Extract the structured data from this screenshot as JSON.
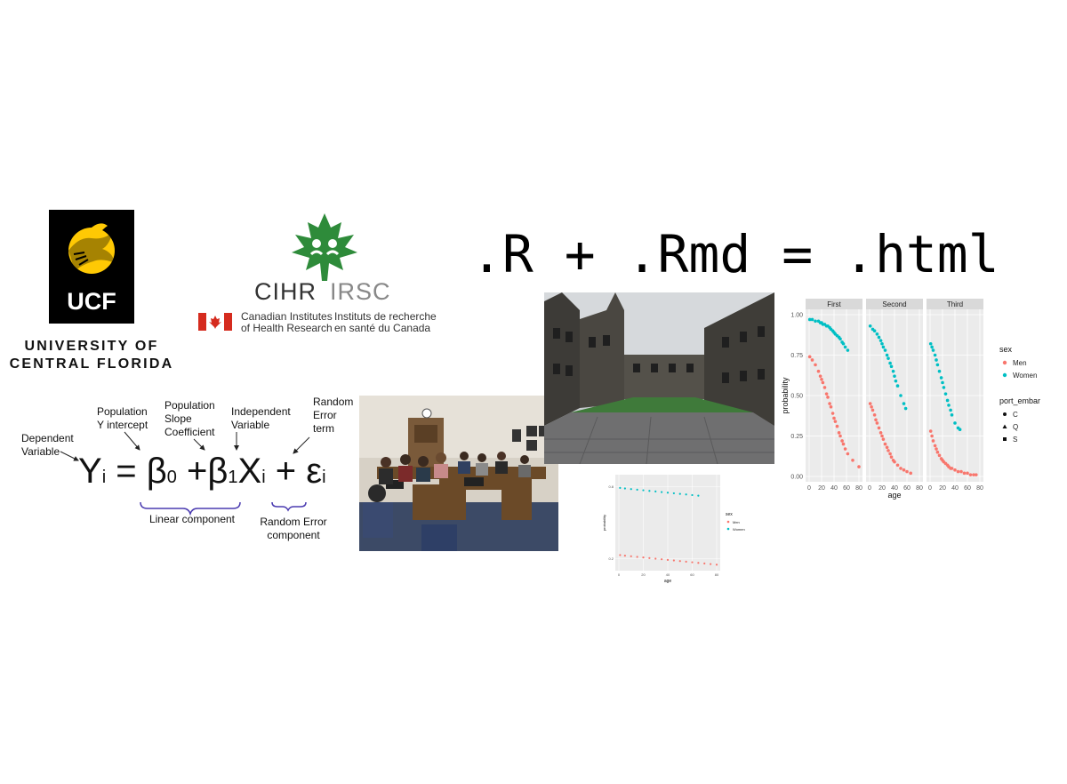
{
  "ucf": {
    "mark": "UCF",
    "line1": "UNIVERSITY OF",
    "line2": "CENTRAL FLORIDA"
  },
  "cihr": {
    "abbrev_en": "CIHR",
    "abbrev_fr": "IRSC",
    "name_en_1": "Canadian Institutes",
    "name_en_2": "of Health Research",
    "name_fr_1": "Instituts de recherche",
    "name_fr_2": "en santé du Canada"
  },
  "title": ".R + .Rmd = .html",
  "equation": {
    "labels": {
      "dependent": [
        "Dependent",
        "Variable"
      ],
      "intercept": [
        "Population",
        "Y  intercept"
      ],
      "slope": [
        "Population",
        "Slope",
        "Coefficient"
      ],
      "independent": [
        "Independent",
        "Variable"
      ],
      "error": [
        "Random",
        "Error",
        "term"
      ]
    },
    "Y": "Y",
    "i": "i",
    "beta": "β",
    "zero": "0",
    "one": "1",
    "X": "X",
    "eps": "ε",
    "equals": "=",
    "plus": "+",
    "linear_component": "Linear component",
    "random_error_component": [
      "Random Error",
      "component"
    ]
  },
  "colors": {
    "men": "#F8766D",
    "women": "#00BFC4",
    "panel": "#EBEBEB",
    "strip": "#D9D9D9",
    "ucf_gold": "#FFC904",
    "cihr_green": "#2e8b3a",
    "flag_red": "#d52b1e"
  },
  "chart_data": [
    {
      "type": "scatter",
      "facets": [
        "First",
        "Second",
        "Third"
      ],
      "xlabel": "age",
      "ylabel": "probability",
      "xticks": [
        0,
        20,
        40,
        60,
        80
      ],
      "yticks": [
        "0.00",
        "0.25",
        "0.50",
        "0.75",
        "1.00"
      ],
      "xlim": [
        0,
        80
      ],
      "ylim": [
        0,
        1
      ],
      "legend_sex_title": "sex",
      "legend_sex": [
        "Men",
        "Women"
      ],
      "legend_port_title": "port_embarked",
      "legend_port": [
        "C",
        "Q",
        "S"
      ],
      "legend_placement": "right",
      "series": [
        {
          "facet": "First",
          "name": "Women",
          "points": [
            [
              1,
              0.97
            ],
            [
              5,
              0.97
            ],
            [
              10,
              0.96
            ],
            [
              15,
              0.96
            ],
            [
              18,
              0.95
            ],
            [
              20,
              0.95
            ],
            [
              22,
              0.94
            ],
            [
              25,
              0.94
            ],
            [
              28,
              0.93
            ],
            [
              30,
              0.93
            ],
            [
              33,
              0.92
            ],
            [
              35,
              0.91
            ],
            [
              38,
              0.9
            ],
            [
              40,
              0.89
            ],
            [
              42,
              0.88
            ],
            [
              45,
              0.87
            ],
            [
              48,
              0.86
            ],
            [
              50,
              0.85
            ],
            [
              53,
              0.83
            ],
            [
              55,
              0.82
            ],
            [
              58,
              0.8
            ],
            [
              62,
              0.78
            ]
          ]
        },
        {
          "facet": "First",
          "name": "Men",
          "points": [
            [
              1,
              0.74
            ],
            [
              5,
              0.72
            ],
            [
              10,
              0.69
            ],
            [
              15,
              0.65
            ],
            [
              18,
              0.62
            ],
            [
              20,
              0.6
            ],
            [
              22,
              0.58
            ],
            [
              25,
              0.55
            ],
            [
              28,
              0.51
            ],
            [
              30,
              0.49
            ],
            [
              33,
              0.45
            ],
            [
              35,
              0.43
            ],
            [
              38,
              0.39
            ],
            [
              40,
              0.36
            ],
            [
              42,
              0.34
            ],
            [
              45,
              0.31
            ],
            [
              48,
              0.27
            ],
            [
              50,
              0.25
            ],
            [
              53,
              0.22
            ],
            [
              55,
              0.2
            ],
            [
              58,
              0.17
            ],
            [
              62,
              0.14
            ],
            [
              70,
              0.1
            ],
            [
              80,
              0.06
            ]
          ]
        },
        {
          "facet": "Second",
          "name": "Women",
          "points": [
            [
              1,
              0.93
            ],
            [
              5,
              0.91
            ],
            [
              8,
              0.9
            ],
            [
              12,
              0.88
            ],
            [
              15,
              0.86
            ],
            [
              18,
              0.84
            ],
            [
              20,
              0.82
            ],
            [
              22,
              0.8
            ],
            [
              25,
              0.78
            ],
            [
              28,
              0.75
            ],
            [
              30,
              0.73
            ],
            [
              33,
              0.7
            ],
            [
              35,
              0.68
            ],
            [
              38,
              0.65
            ],
            [
              40,
              0.62
            ],
            [
              42,
              0.59
            ],
            [
              45,
              0.56
            ],
            [
              50,
              0.5
            ],
            [
              55,
              0.45
            ],
            [
              58,
              0.42
            ]
          ]
        },
        {
          "facet": "Second",
          "name": "Men",
          "points": [
            [
              1,
              0.45
            ],
            [
              3,
              0.43
            ],
            [
              5,
              0.41
            ],
            [
              8,
              0.38
            ],
            [
              10,
              0.35
            ],
            [
              12,
              0.33
            ],
            [
              15,
              0.3
            ],
            [
              18,
              0.27
            ],
            [
              20,
              0.25
            ],
            [
              22,
              0.23
            ],
            [
              25,
              0.2
            ],
            [
              28,
              0.18
            ],
            [
              30,
              0.16
            ],
            [
              33,
              0.14
            ],
            [
              35,
              0.12
            ],
            [
              38,
              0.1
            ],
            [
              40,
              0.09
            ],
            [
              45,
              0.07
            ],
            [
              50,
              0.05
            ],
            [
              55,
              0.04
            ],
            [
              60,
              0.03
            ],
            [
              66,
              0.02
            ]
          ]
        },
        {
          "facet": "Third",
          "name": "Women",
          "points": [
            [
              1,
              0.82
            ],
            [
              3,
              0.8
            ],
            [
              5,
              0.78
            ],
            [
              8,
              0.75
            ],
            [
              10,
              0.72
            ],
            [
              12,
              0.69
            ],
            [
              15,
              0.65
            ],
            [
              18,
              0.61
            ],
            [
              20,
              0.58
            ],
            [
              22,
              0.55
            ],
            [
              25,
              0.51
            ],
            [
              28,
              0.47
            ],
            [
              30,
              0.44
            ],
            [
              33,
              0.41
            ],
            [
              35,
              0.38
            ],
            [
              40,
              0.33
            ],
            [
              45,
              0.3
            ],
            [
              48,
              0.29
            ]
          ]
        },
        {
          "facet": "Third",
          "name": "Men",
          "points": [
            [
              1,
              0.28
            ],
            [
              3,
              0.25
            ],
            [
              5,
              0.22
            ],
            [
              8,
              0.19
            ],
            [
              10,
              0.17
            ],
            [
              12,
              0.15
            ],
            [
              15,
              0.13
            ],
            [
              18,
              0.11
            ],
            [
              20,
              0.1
            ],
            [
              22,
              0.09
            ],
            [
              25,
              0.08
            ],
            [
              28,
              0.07
            ],
            [
              30,
              0.06
            ],
            [
              33,
              0.05
            ],
            [
              35,
              0.05
            ],
            [
              40,
              0.04
            ],
            [
              45,
              0.03
            ],
            [
              50,
              0.03
            ],
            [
              55,
              0.02
            ],
            [
              60,
              0.02
            ],
            [
              65,
              0.01
            ],
            [
              70,
              0.01
            ],
            [
              74,
              0.01
            ]
          ]
        }
      ]
    },
    {
      "type": "scatter",
      "xlabel": "age",
      "ylabel": "probability",
      "xticks": [
        0,
        20,
        40,
        60,
        80
      ],
      "yticks": [
        "0.2",
        "0.8"
      ],
      "xlim": [
        0,
        80
      ],
      "ylim": [
        0.1,
        0.9
      ],
      "legend_sex_title": "sex",
      "legend_sex": [
        "Men",
        "Women"
      ],
      "legend_placement": "right",
      "series": [
        {
          "name": "Women",
          "points": [
            [
              1,
              0.79
            ],
            [
              5,
              0.785
            ],
            [
              10,
              0.78
            ],
            [
              15,
              0.775
            ],
            [
              20,
              0.77
            ],
            [
              25,
              0.765
            ],
            [
              30,
              0.76
            ],
            [
              35,
              0.755
            ],
            [
              40,
              0.75
            ],
            [
              45,
              0.745
            ],
            [
              50,
              0.74
            ],
            [
              55,
              0.735
            ],
            [
              60,
              0.73
            ],
            [
              65,
              0.725
            ]
          ]
        },
        {
          "name": "Men",
          "points": [
            [
              1,
              0.23
            ],
            [
              5,
              0.225
            ],
            [
              10,
              0.22
            ],
            [
              15,
              0.215
            ],
            [
              20,
              0.21
            ],
            [
              25,
              0.205
            ],
            [
              30,
              0.2
            ],
            [
              35,
              0.195
            ],
            [
              40,
              0.19
            ],
            [
              45,
              0.185
            ],
            [
              50,
              0.18
            ],
            [
              55,
              0.175
            ],
            [
              60,
              0.17
            ],
            [
              65,
              0.165
            ],
            [
              70,
              0.16
            ],
            [
              75,
              0.155
            ],
            [
              80,
              0.15
            ]
          ]
        }
      ]
    }
  ]
}
